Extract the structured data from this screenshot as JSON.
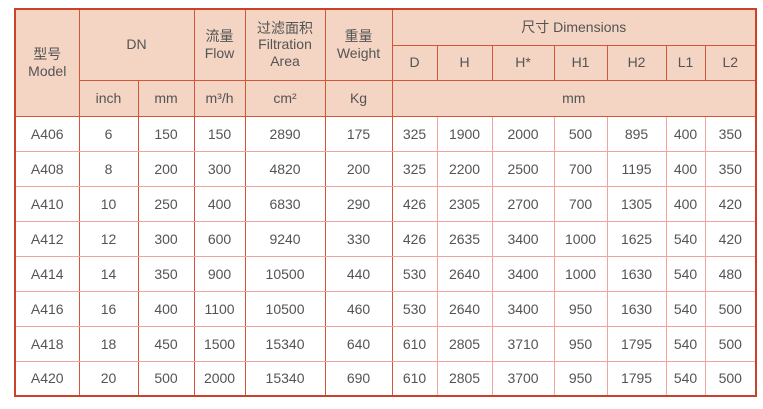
{
  "colors": {
    "header_bg": "#f4d5c4",
    "header_grid": "#d6543a",
    "data_grid": "#f0a49a",
    "outer_border": "#c8432a",
    "text": "#545454",
    "page_bg": "#ffffff"
  },
  "table": {
    "header": {
      "model_zh": "型号",
      "model_en": "Model",
      "dn": "DN",
      "flow_zh": "流量",
      "flow_en": "Flow",
      "filtration_zh": "过滤面积",
      "filtration_en_1": "Filtration",
      "filtration_en_2": "Area",
      "weight_zh": "重量",
      "weight_en": "Weight",
      "dimensions": "尺寸 Dimensions",
      "dim_cols": [
        "D",
        "H",
        "H*",
        "H1",
        "H2",
        "L1",
        "L2"
      ],
      "unit_inch": "inch",
      "unit_mm": "mm",
      "unit_flow": "m³/h",
      "unit_area": "cm²",
      "unit_weight": "Kg",
      "unit_dim": "mm"
    },
    "rows": [
      [
        "A406",
        "6",
        "150",
        "150",
        "2890",
        "175",
        "325",
        "1900",
        "2000",
        "500",
        "895",
        "400",
        "350"
      ],
      [
        "A408",
        "8",
        "200",
        "300",
        "4820",
        "200",
        "325",
        "2200",
        "2500",
        "700",
        "1195",
        "400",
        "350"
      ],
      [
        "A410",
        "10",
        "250",
        "400",
        "6830",
        "290",
        "426",
        "2305",
        "2700",
        "700",
        "1305",
        "400",
        "420"
      ],
      [
        "A412",
        "12",
        "300",
        "600",
        "9240",
        "330",
        "426",
        "2635",
        "3400",
        "1000",
        "1625",
        "540",
        "420"
      ],
      [
        "A414",
        "14",
        "350",
        "900",
        "10500",
        "440",
        "530",
        "2640",
        "3400",
        "1000",
        "1630",
        "540",
        "480"
      ],
      [
        "A416",
        "16",
        "400",
        "1100",
        "10500",
        "460",
        "530",
        "2640",
        "3400",
        "950",
        "1630",
        "540",
        "500"
      ],
      [
        "A418",
        "18",
        "450",
        "1500",
        "15340",
        "640",
        "610",
        "2805",
        "3710",
        "950",
        "1795",
        "540",
        "500"
      ],
      [
        "A420",
        "20",
        "500",
        "2000",
        "15340",
        "690",
        "610",
        "2805",
        "3700",
        "950",
        "1795",
        "540",
        "500"
      ]
    ]
  }
}
